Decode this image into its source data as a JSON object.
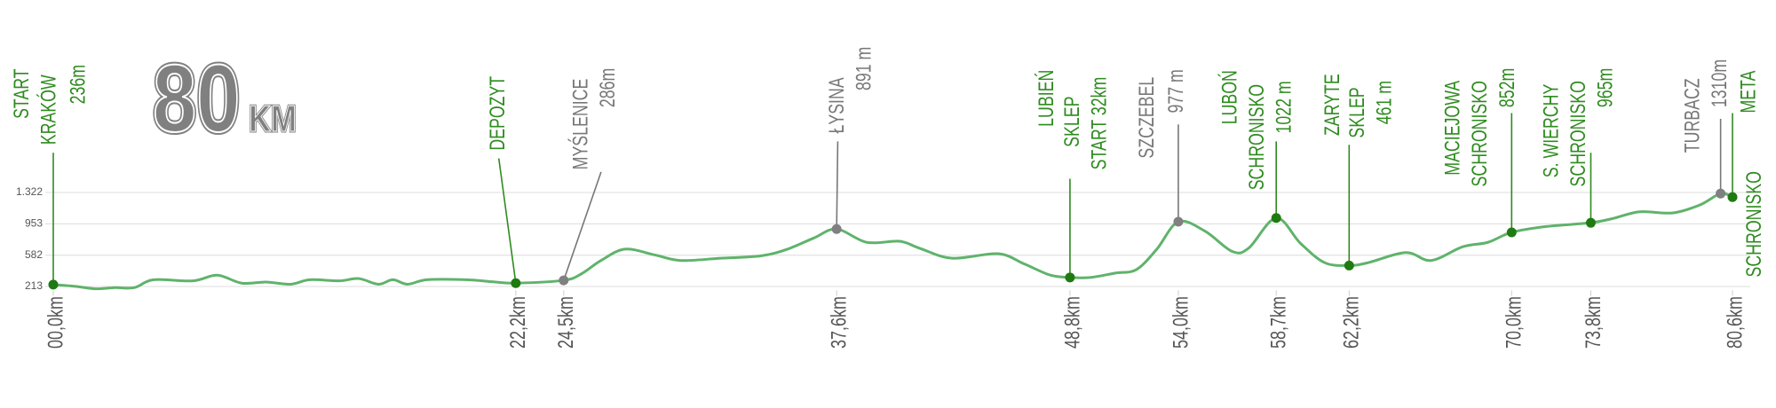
{
  "chart_data": {
    "type": "line",
    "title": "80",
    "title_unit": "KM",
    "xlim": [
      0,
      80.6
    ],
    "ylim": [
      0,
      1400
    ],
    "yticks": [
      213,
      582,
      953,
      {
        "value": 1322,
        "label": "1.322"
      }
    ],
    "xticks": [
      {
        "value": 0,
        "label": "00,0km"
      },
      {
        "value": 22.2,
        "label": "22,2km"
      },
      {
        "value": 24.5,
        "label": "24,5km"
      },
      {
        "value": 37.6,
        "label": "37,6km"
      },
      {
        "value": 48.8,
        "label": "48,8km"
      },
      {
        "value": 54.0,
        "label": "54,0km"
      },
      {
        "value": 58.7,
        "label": "58,7km"
      },
      {
        "value": 62.2,
        "label": "62,2km"
      },
      {
        "value": 70.0,
        "label": "70,0km"
      },
      {
        "value": 73.8,
        "label": "73,8km"
      },
      {
        "value": 80.6,
        "label": "80,6km"
      }
    ],
    "grid": true,
    "series": [
      {
        "color": "#5fb36b",
        "x": [
          0,
          1.08,
          2.01,
          2.95,
          3.89,
          4.82,
          6.7,
          7.87,
          9.04,
          10.21,
          11.38,
          12.32,
          13.72,
          14.66,
          15.6,
          16.3,
          17,
          17.94,
          19.81,
          21.22,
          22.2,
          24.5,
          25.33,
          26.29,
          27.44,
          28.85,
          30.12,
          32.04,
          33.96,
          35.24,
          36.52,
          37.6,
          39.05,
          40.62,
          41.56,
          43.14,
          45.34,
          46.6,
          47.86,
          48.8,
          49.78,
          51.01,
          51.99,
          52.97,
          54,
          55.27,
          56.59,
          57.38,
          58.7,
          59.87,
          61.03,
          62.2,
          63.11,
          64.92,
          66.13,
          67.64,
          68.85,
          70,
          71.66,
          73.8,
          74.85,
          76.15,
          77.72,
          79.03,
          80.03,
          80.6
        ],
        "values": [
          236,
          215,
          186,
          200,
          200,
          293,
          280,
          347,
          253,
          266,
          240,
          293,
          280,
          307,
          240,
          293,
          240,
          293,
          293,
          266,
          253,
          286,
          360,
          520,
          654,
          587,
          520,
          547,
          574,
          654,
          787,
          891,
          734,
          747,
          667,
          547,
          600,
          480,
          347,
          320,
          320,
          373,
          413,
          654,
          977,
          868,
          627,
          667,
          1022,
          721,
          494,
          461,
          494,
          614,
          520,
          681,
          734,
          852,
          921,
          965,
          1015,
          1095,
          1081,
          1175,
          1310,
          1268
        ]
      }
    ],
    "waypoints": [
      {
        "x": 0,
        "y": 236,
        "labels": [
          "START",
          "KRAKÓW",
          "236m"
        ],
        "color": "#2e8b1f"
      },
      {
        "x": 22.2,
        "y": 253,
        "labels": [
          "DEPOZYT"
        ],
        "color": "#2e8b1f"
      },
      {
        "x": 24.5,
        "y": 286,
        "labels": [
          "MYŚLENICE",
          "286m"
        ],
        "color": "#777777"
      },
      {
        "x": 37.6,
        "y": 891,
        "labels": [
          "ŁYSINA",
          "891 m"
        ],
        "color": "#777777"
      },
      {
        "x": 48.8,
        "y": 320,
        "labels": [
          "LUBIEŃ",
          "SKLEP",
          "START 32km"
        ],
        "color": "#2e8b1f"
      },
      {
        "x": 54.0,
        "y": 977,
        "labels": [
          "SZCZEBEL",
          "977 m"
        ],
        "color": "#777777"
      },
      {
        "x": 58.7,
        "y": 1022,
        "labels": [
          "LUBOŃ",
          "SCHRONISKO",
          "1022 m"
        ],
        "color": "#2e8b1f"
      },
      {
        "x": 62.2,
        "y": 461,
        "labels": [
          "ZARYTE",
          "SKLEP",
          "461 m"
        ],
        "color": "#2e8b1f"
      },
      {
        "x": 70.0,
        "y": 852,
        "labels": [
          "MACIEJOWA",
          "SCHRONISKO",
          "852m"
        ],
        "color": "#2e8b1f"
      },
      {
        "x": 73.8,
        "y": 965,
        "labels": [
          "S. WIERCHY",
          "SCHRONISKO",
          "965m"
        ],
        "color": "#2e8b1f"
      },
      {
        "x": 80.03,
        "y": 1310,
        "labels": [
          "TURBACZ",
          "1310m"
        ],
        "color": "#777777"
      },
      {
        "x": 80.6,
        "y": 1268,
        "labels": [
          "META",
          "SCHRONISKO"
        ],
        "color": "#2e8b1f"
      }
    ]
  }
}
